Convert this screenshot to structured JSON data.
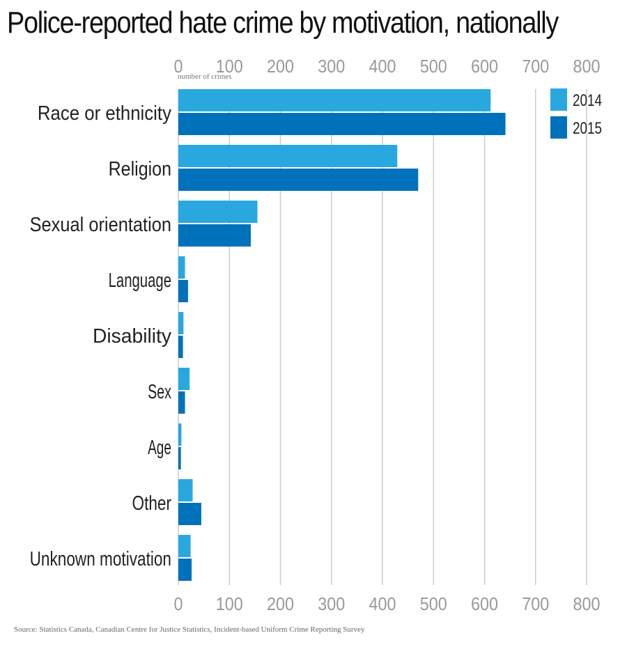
{
  "chart_data": {
    "type": "bar",
    "orientation": "horizontal",
    "title": "Police-reported hate crime by motivation, nationally",
    "xlabel": "number of crimes",
    "ylabel": "",
    "xlim": [
      0,
      800
    ],
    "xticks": [
      "0",
      "100",
      "200",
      "300",
      "400",
      "500",
      "600",
      "700",
      "800"
    ],
    "grid": true,
    "legend_position": "top-right",
    "categories": [
      "Race or ethnicity",
      "Religion",
      "Sexual orientation",
      "Language",
      "Disability",
      "Sex",
      "Age",
      "Other",
      "Unknown motivation"
    ],
    "series": [
      {
        "name": "2014",
        "color": "#29a8e0",
        "values": [
          612,
          429,
          155,
          13,
          10,
          22,
          6,
          28,
          24
        ]
      },
      {
        "name": "2015",
        "color": "#0071bb",
        "values": [
          641,
          470,
          142,
          19,
          9,
          13,
          5,
          45,
          26
        ]
      }
    ],
    "source": "Source: Statistics Canada, Canadian Centre for Justice Statistics, Incident-based Uniform Crime Reporting Survey"
  }
}
